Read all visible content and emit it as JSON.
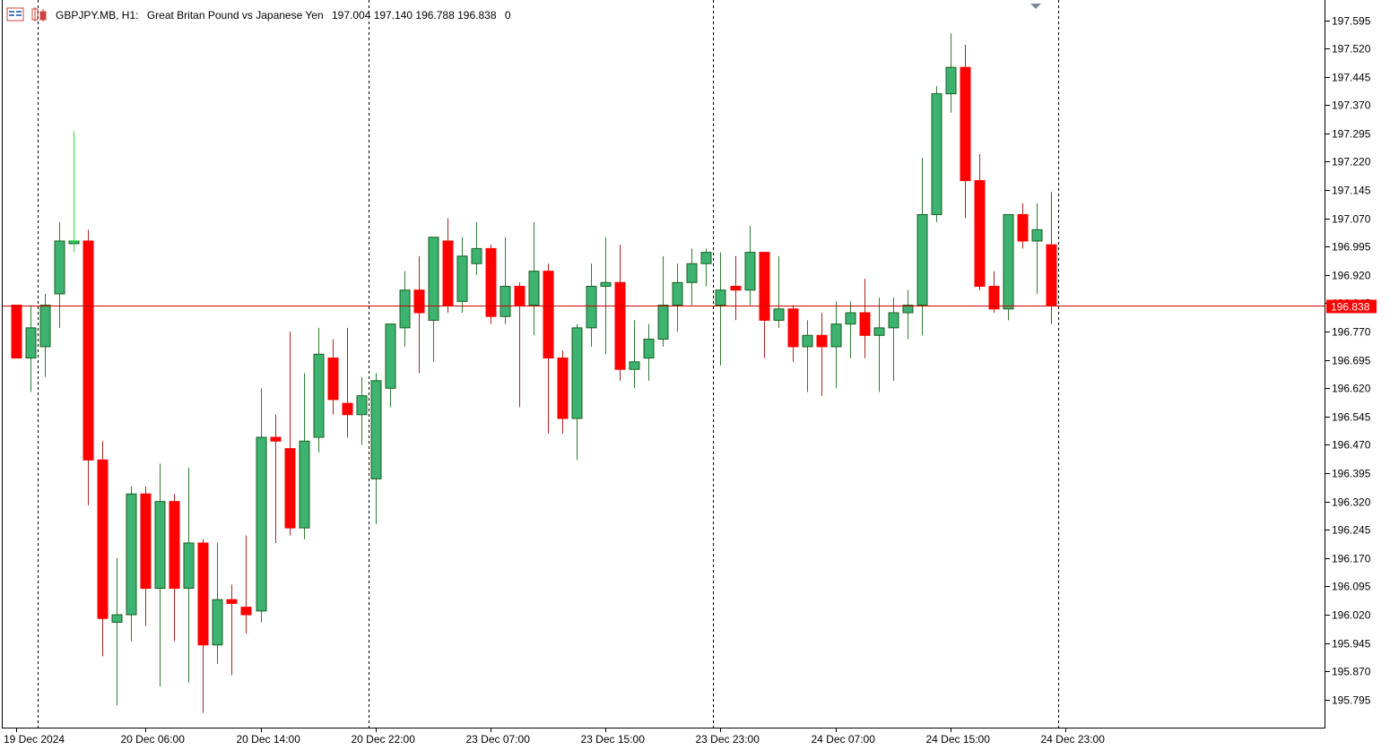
{
  "header": {
    "symbol": "GBPJPY.MB, H1:",
    "description": "Great Britan Pound vs Japanese Yen",
    "ohlc": "197.004 197.140 196.788 196.838",
    "spread": "0"
  },
  "colors": {
    "bull_body": "#3cb371",
    "bull_wick": "#2e7d32",
    "bear_body": "#ff0000",
    "bear_wick": "#b22222",
    "price_line": "#cc0000",
    "price_label_bg": "#ff0000",
    "grid": "#000000",
    "background": "#ffffff"
  },
  "icons": [
    "chart-window-icon",
    "candle-chart-icon",
    "current-candle-marker-icon",
    "shift-marker-icon"
  ],
  "chart_data": {
    "type": "candlestick",
    "current_price": 196.838,
    "current_price_label": "196.838",
    "ylim": [
      195.74,
      197.64
    ],
    "y_ticks": [
      "197.595",
      "197.520",
      "197.445",
      "197.370",
      "197.295",
      "197.220",
      "197.145",
      "197.070",
      "196.995",
      "196.920",
      "196.845",
      "196.770",
      "196.695",
      "196.620",
      "196.545",
      "196.470",
      "196.395",
      "196.320",
      "196.245",
      "196.170",
      "196.095",
      "196.020",
      "195.945",
      "195.870",
      "195.795"
    ],
    "x_labels": [
      {
        "label": "19 Dec 2024",
        "index": 0
      },
      {
        "label": "20 Dec 06:00",
        "index": 9
      },
      {
        "label": "20 Dec 14:00",
        "index": 17
      },
      {
        "label": "20 Dec 22:00",
        "index": 25
      },
      {
        "label": "23 Dec 07:00",
        "index": 33
      },
      {
        "label": "23 Dec 15:00",
        "index": 41
      },
      {
        "label": "23 Dec 23:00",
        "index": 49
      },
      {
        "label": "24 Dec 07:00",
        "index": 57
      },
      {
        "label": "24 Dec 15:00",
        "index": 65
      },
      {
        "label": "24 Dec 23:00",
        "index": 73
      }
    ],
    "day_separators": [
      1,
      24,
      48,
      72
    ],
    "candles": [
      {
        "o": 196.84,
        "h": 196.84,
        "l": 196.7,
        "c": 196.7
      },
      {
        "o": 196.7,
        "h": 196.84,
        "l": 196.61,
        "c": 196.78
      },
      {
        "o": 196.73,
        "h": 196.87,
        "l": 196.65,
        "c": 196.84
      },
      {
        "o": 196.87,
        "h": 197.06,
        "l": 196.78,
        "c": 197.01
      },
      {
        "o": 197.01,
        "h": 197.3,
        "l": 196.98,
        "c": 197.01
      },
      {
        "o": 197.01,
        "h": 197.04,
        "l": 196.31,
        "c": 196.43
      },
      {
        "o": 196.43,
        "h": 196.48,
        "l": 195.91,
        "c": 196.01
      },
      {
        "o": 196.0,
        "h": 196.17,
        "l": 195.78,
        "c": 196.02
      },
      {
        "o": 196.02,
        "h": 196.36,
        "l": 195.95,
        "c": 196.34
      },
      {
        "o": 196.34,
        "h": 196.36,
        "l": 195.99,
        "c": 196.09
      },
      {
        "o": 196.09,
        "h": 196.42,
        "l": 195.83,
        "c": 196.32
      },
      {
        "o": 196.32,
        "h": 196.34,
        "l": 195.95,
        "c": 196.09
      },
      {
        "o": 196.09,
        "h": 196.41,
        "l": 195.84,
        "c": 196.21
      },
      {
        "o": 196.21,
        "h": 196.22,
        "l": 195.76,
        "c": 195.94
      },
      {
        "o": 195.94,
        "h": 196.21,
        "l": 195.89,
        "c": 196.06
      },
      {
        "o": 196.06,
        "h": 196.1,
        "l": 195.86,
        "c": 196.05
      },
      {
        "o": 196.04,
        "h": 196.23,
        "l": 195.97,
        "c": 196.02
      },
      {
        "o": 196.03,
        "h": 196.62,
        "l": 196.0,
        "c": 196.49
      },
      {
        "o": 196.49,
        "h": 196.55,
        "l": 196.21,
        "c": 196.48
      },
      {
        "o": 196.46,
        "h": 196.77,
        "l": 196.23,
        "c": 196.25
      },
      {
        "o": 196.25,
        "h": 196.66,
        "l": 196.22,
        "c": 196.48
      },
      {
        "o": 196.49,
        "h": 196.78,
        "l": 196.45,
        "c": 196.71
      },
      {
        "o": 196.7,
        "h": 196.75,
        "l": 196.55,
        "c": 196.59
      },
      {
        "o": 196.58,
        "h": 196.78,
        "l": 196.49,
        "c": 196.55
      },
      {
        "o": 196.55,
        "h": 196.65,
        "l": 196.47,
        "c": 196.6
      },
      {
        "o": 196.38,
        "h": 196.66,
        "l": 196.26,
        "c": 196.64
      },
      {
        "o": 196.62,
        "h": 196.79,
        "l": 196.57,
        "c": 196.79
      },
      {
        "o": 196.78,
        "h": 196.93,
        "l": 196.73,
        "c": 196.88
      },
      {
        "o": 196.88,
        "h": 196.97,
        "l": 196.66,
        "c": 196.82
      },
      {
        "o": 196.8,
        "h": 197.01,
        "l": 196.69,
        "c": 197.02
      },
      {
        "o": 197.01,
        "h": 197.07,
        "l": 196.82,
        "c": 196.84
      },
      {
        "o": 196.85,
        "h": 197.02,
        "l": 196.82,
        "c": 196.97
      },
      {
        "o": 196.95,
        "h": 197.06,
        "l": 196.92,
        "c": 196.99
      },
      {
        "o": 196.99,
        "h": 197.0,
        "l": 196.79,
        "c": 196.81
      },
      {
        "o": 196.81,
        "h": 197.02,
        "l": 196.79,
        "c": 196.89
      },
      {
        "o": 196.89,
        "h": 196.9,
        "l": 196.57,
        "c": 196.84
      },
      {
        "o": 196.84,
        "h": 197.06,
        "l": 196.76,
        "c": 196.93
      },
      {
        "o": 196.93,
        "h": 196.95,
        "l": 196.5,
        "c": 196.7
      },
      {
        "o": 196.7,
        "h": 196.72,
        "l": 196.5,
        "c": 196.54
      },
      {
        "o": 196.54,
        "h": 196.79,
        "l": 196.43,
        "c": 196.78
      },
      {
        "o": 196.78,
        "h": 196.95,
        "l": 196.73,
        "c": 196.89
      },
      {
        "o": 196.89,
        "h": 197.02,
        "l": 196.71,
        "c": 196.9
      },
      {
        "o": 196.9,
        "h": 197.0,
        "l": 196.64,
        "c": 196.67
      },
      {
        "o": 196.67,
        "h": 196.8,
        "l": 196.62,
        "c": 196.69
      },
      {
        "o": 196.7,
        "h": 196.79,
        "l": 196.64,
        "c": 196.75
      },
      {
        "o": 196.75,
        "h": 196.97,
        "l": 196.73,
        "c": 196.84
      },
      {
        "o": 196.84,
        "h": 196.95,
        "l": 196.77,
        "c": 196.9
      },
      {
        "o": 196.9,
        "h": 196.99,
        "l": 196.84,
        "c": 196.95
      },
      {
        "o": 196.95,
        "h": 196.99,
        "l": 196.89,
        "c": 196.98
      },
      {
        "o": 196.84,
        "h": 196.98,
        "l": 196.68,
        "c": 196.88
      },
      {
        "o": 196.89,
        "h": 196.97,
        "l": 196.8,
        "c": 196.88
      },
      {
        "o": 196.88,
        "h": 197.05,
        "l": 196.84,
        "c": 196.98
      },
      {
        "o": 196.98,
        "h": 196.98,
        "l": 196.7,
        "c": 196.8
      },
      {
        "o": 196.8,
        "h": 196.97,
        "l": 196.78,
        "c": 196.83
      },
      {
        "o": 196.83,
        "h": 196.84,
        "l": 196.69,
        "c": 196.73
      },
      {
        "o": 196.73,
        "h": 196.8,
        "l": 196.61,
        "c": 196.76
      },
      {
        "o": 196.76,
        "h": 196.82,
        "l": 196.6,
        "c": 196.73
      },
      {
        "o": 196.73,
        "h": 196.85,
        "l": 196.62,
        "c": 196.79
      },
      {
        "o": 196.79,
        "h": 196.85,
        "l": 196.7,
        "c": 196.82
      },
      {
        "o": 196.82,
        "h": 196.91,
        "l": 196.7,
        "c": 196.76
      },
      {
        "o": 196.76,
        "h": 196.86,
        "l": 196.61,
        "c": 196.78
      },
      {
        "o": 196.78,
        "h": 196.86,
        "l": 196.64,
        "c": 196.82
      },
      {
        "o": 196.82,
        "h": 196.88,
        "l": 196.75,
        "c": 196.84
      },
      {
        "o": 196.84,
        "h": 197.23,
        "l": 196.76,
        "c": 197.08
      },
      {
        "o": 197.08,
        "h": 197.42,
        "l": 197.06,
        "c": 197.4
      },
      {
        "o": 197.4,
        "h": 197.56,
        "l": 197.35,
        "c": 197.47
      },
      {
        "o": 197.47,
        "h": 197.53,
        "l": 197.07,
        "c": 197.17
      },
      {
        "o": 197.17,
        "h": 197.24,
        "l": 196.88,
        "c": 196.89
      },
      {
        "o": 196.89,
        "h": 196.93,
        "l": 196.82,
        "c": 196.83
      },
      {
        "o": 196.83,
        "h": 197.08,
        "l": 196.8,
        "c": 197.08
      },
      {
        "o": 197.08,
        "h": 197.11,
        "l": 196.99,
        "c": 197.01
      },
      {
        "o": 197.01,
        "h": 197.11,
        "l": 196.87,
        "c": 197.04
      },
      {
        "o": 197.0,
        "h": 197.14,
        "l": 196.79,
        "c": 196.84
      }
    ]
  }
}
